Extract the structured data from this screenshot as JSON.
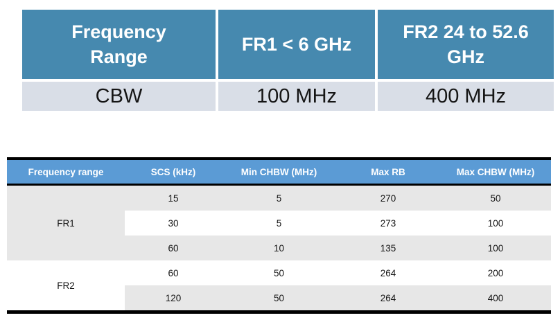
{
  "cbw_table": {
    "columns": [
      "Frequency\nRange",
      "FR1 < 6 GHz",
      "FR2 24 to 52.6\nGHz"
    ],
    "row_label": "CBW",
    "row_values": [
      "100 MHz",
      "400 MHz"
    ],
    "header_bg": "#4689af",
    "row_bg": "#d9dee7"
  },
  "chbw_table": {
    "headers": [
      "Frequency range",
      "SCS (kHz)",
      "Min CHBW (MHz)",
      "Max RB",
      "Max CHBW (MHz)"
    ],
    "groups": [
      {
        "label": "FR1",
        "rows": [
          [
            "15",
            "5",
            "270",
            "50"
          ],
          [
            "30",
            "5",
            "273",
            "100"
          ],
          [
            "60",
            "10",
            "135",
            "100"
          ]
        ]
      },
      {
        "label": "FR2",
        "rows": [
          [
            "60",
            "50",
            "264",
            "200"
          ],
          [
            "120",
            "50",
            "264",
            "400"
          ]
        ]
      }
    ],
    "header_bg": "#5b9bd5",
    "stripe_bg": "#e7e7e7",
    "border_color": "#000000"
  }
}
